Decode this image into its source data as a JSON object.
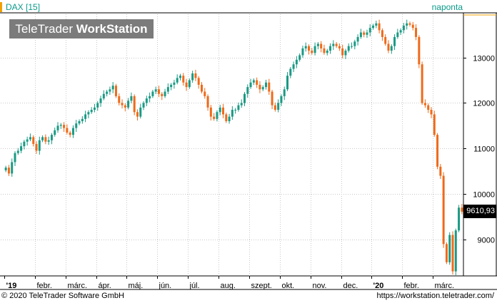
{
  "header": {
    "title": "DAX [15]",
    "period": "naponta",
    "accent_color": "#f0a000"
  },
  "brand": {
    "part1": "TeleTrader ",
    "part2": "WorkStation"
  },
  "price_tag": "9610,93",
  "footer": {
    "left": "© 2020 TeleTrader Software GmbH",
    "right": "https://workstation.teletrader.com/"
  },
  "colors": {
    "up": "#1a9a84",
    "down": "#ef6a1a",
    "grid": "#c8c8c8",
    "axis": "#000000"
  },
  "chart_data": {
    "type": "candlestick",
    "y_axis": {
      "ticks": [
        9000,
        10000,
        11000,
        12000,
        13000
      ],
      "tick_labels": [
        "9000",
        "10000",
        "11000",
        "12000",
        "13000"
      ],
      "range": [
        8200,
        13950
      ]
    },
    "x_axis": {
      "labels": [
        "'19",
        "febr.",
        "márc.",
        "ápr.",
        "máj.",
        "jún.",
        "júl.",
        "aug.",
        "szept.",
        "okt.",
        "nov.",
        "dec.",
        "'20",
        "febr.",
        "márc."
      ],
      "bold_labels": [
        "'19",
        "'20"
      ]
    },
    "last_value": 9610.93,
    "close_series": [
      10580,
      10450,
      10700,
      10900,
      10950,
      11050,
      11150,
      11200,
      11250,
      11100,
      10950,
      11180,
      11250,
      11150,
      11180,
      11300,
      11400,
      11500,
      11520,
      11450,
      11350,
      11300,
      11450,
      11550,
      11600,
      11650,
      11750,
      11800,
      11850,
      11900,
      12000,
      12100,
      12200,
      12250,
      12300,
      12380,
      12150,
      12000,
      11950,
      11900,
      12050,
      12150,
      11800,
      11700,
      11900,
      12000,
      12100,
      12150,
      12250,
      12300,
      12200,
      12150,
      12250,
      12350,
      12400,
      12450,
      12550,
      12600,
      12450,
      12350,
      12500,
      12650,
      12550,
      12400,
      12250,
      12150,
      11900,
      11700,
      11650,
      11800,
      11900,
      11750,
      11600,
      11700,
      11850,
      11850,
      11950,
      12000,
      12200,
      12350,
      12450,
      12500,
      12400,
      12300,
      12350,
      12450,
      12250,
      11950,
      11850,
      12000,
      12150,
      12300,
      12600,
      12750,
      12850,
      12950,
      13050,
      13200,
      13250,
      13150,
      13100,
      13250,
      13300,
      13200,
      13100,
      13150,
      13250,
      13300,
      13250,
      13200,
      13050,
      13150,
      13250,
      13250,
      13350,
      13450,
      13550,
      13500,
      13550,
      13650,
      13700,
      13750,
      13600,
      13450,
      13300,
      13150,
      13250,
      13450,
      13550,
      13600,
      13700,
      13750,
      13720,
      13650,
      13450,
      12850,
      12000,
      11950,
      11850,
      11750,
      11300,
      10600,
      10400,
      8900,
      8500,
      9100,
      8300,
      9200,
      9700,
      9610.93
    ]
  }
}
